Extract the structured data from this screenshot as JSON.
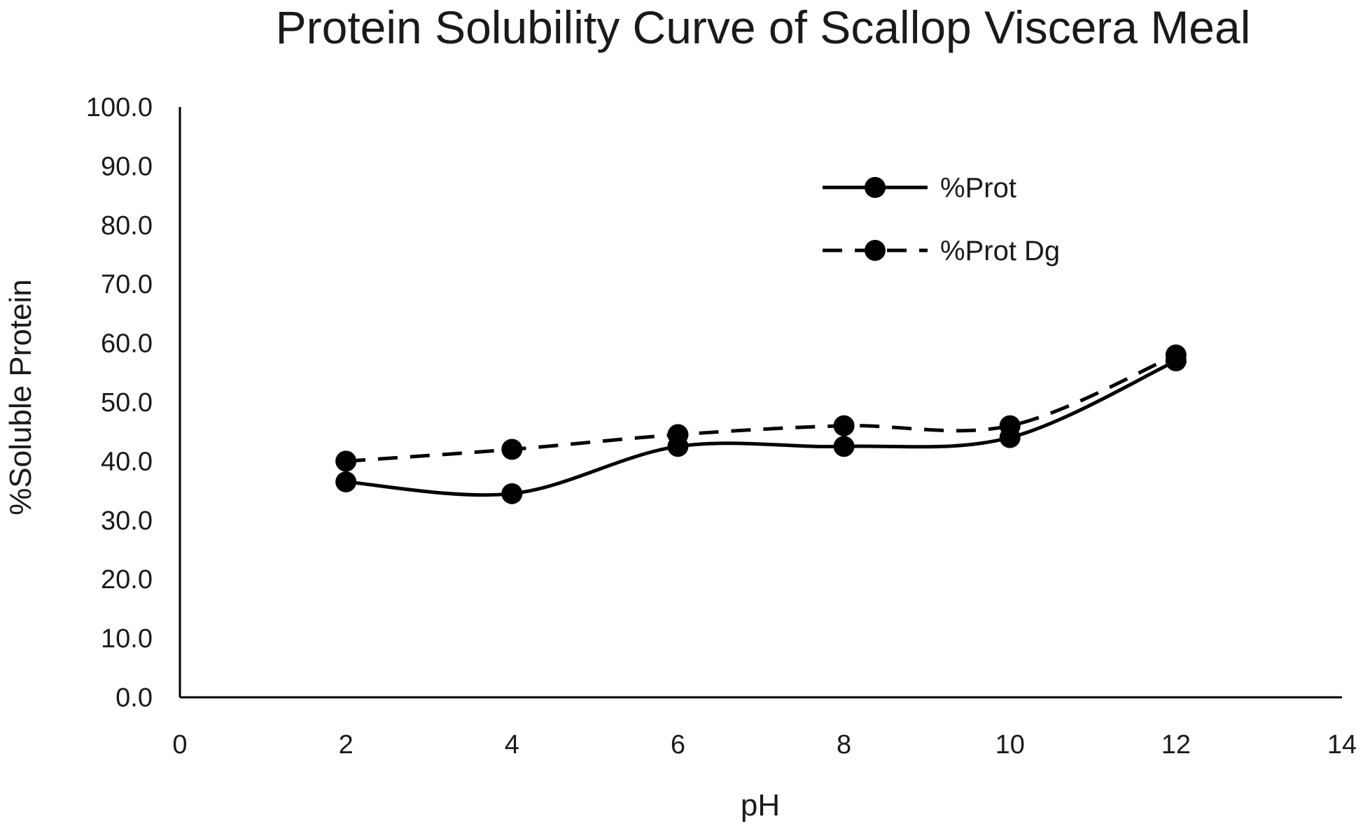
{
  "chart_data": {
    "type": "line",
    "title": "Protein Solubility Curve of Scallop Viscera Meal",
    "xlabel": "pH",
    "ylabel": "%Soluble Protein",
    "xlim": [
      0,
      14
    ],
    "ylim": [
      0,
      100
    ],
    "x_ticks": [
      0,
      2,
      4,
      6,
      8,
      10,
      12,
      14
    ],
    "y_ticks": [
      "0.0",
      "10.0",
      "20.0",
      "30.0",
      "40.0",
      "50.0",
      "60.0",
      "70.0",
      "80.0",
      "90.0",
      "100.0"
    ],
    "grid": false,
    "legend_position": "top-right",
    "x": [
      2,
      4,
      6,
      8,
      10,
      12
    ],
    "series": [
      {
        "name": "%Prot",
        "line_style": "solid",
        "marker": "circle",
        "smooth": true,
        "values": [
          36.5,
          34.5,
          42.5,
          42.5,
          44.0,
          57.0
        ]
      },
      {
        "name": "%Prot Dg",
        "line_style": "dashed",
        "marker": "circle",
        "smooth": true,
        "values": [
          40.0,
          42.0,
          44.5,
          46.0,
          46.0,
          58.0
        ]
      }
    ]
  },
  "colors": {
    "series": "#000000",
    "axis": "#000000",
    "text": "#1a1a1a"
  }
}
